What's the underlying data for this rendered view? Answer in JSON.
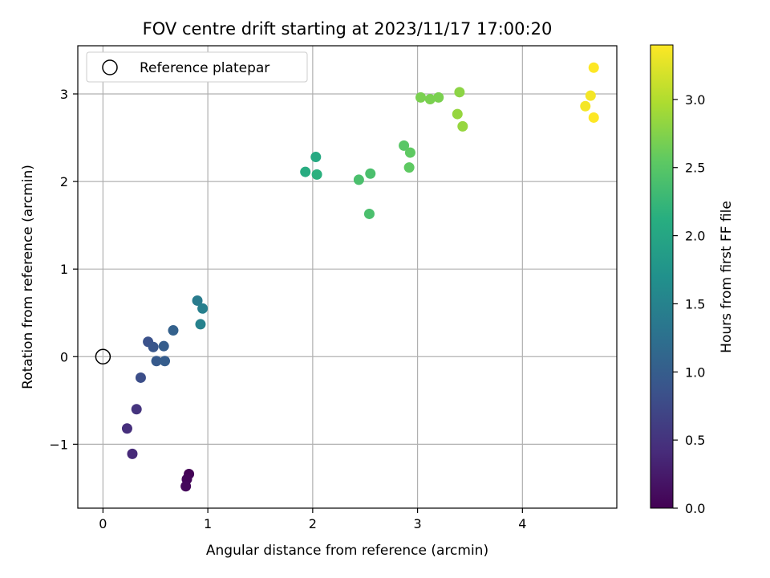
{
  "chart_data": {
    "type": "scatter",
    "title": "FOV centre drift starting at 2023/11/17 17:00:20",
    "xlabel": "Angular distance from reference (arcmin)",
    "ylabel": "Rotation from reference (arcmin)",
    "xlim": [
      -0.24,
      4.9
    ],
    "ylim": [
      -1.73,
      3.55
    ],
    "xticks": [
      0,
      1,
      2,
      3,
      4
    ],
    "xtick_labels": [
      "0",
      "1",
      "2",
      "3",
      "4"
    ],
    "yticks": [
      -1,
      0,
      1,
      2,
      3
    ],
    "ytick_labels": [
      "−1",
      "0",
      "1",
      "2",
      "3"
    ],
    "grid": true,
    "colormap": "viridis",
    "colorbar": {
      "label": "Hours from first FF file",
      "range": [
        0,
        3.4
      ],
      "ticks": [
        0,
        0.5,
        1,
        1.5,
        2,
        2.5,
        3
      ],
      "tick_labels": [
        "0.0",
        "0.5",
        "1.0",
        "1.5",
        "2.0",
        "2.5",
        "3.0"
      ]
    },
    "legend": {
      "placement": "top-left",
      "entries": [
        {
          "label": "Reference platepar",
          "marker": "open-circle"
        }
      ]
    },
    "reference_point": {
      "x": 0,
      "y": 0
    },
    "points": [
      {
        "x": 0.82,
        "y": -1.34,
        "c": 0.02
      },
      {
        "x": 0.8,
        "y": -1.4,
        "c": 0.05
      },
      {
        "x": 0.79,
        "y": -1.48,
        "c": 0.08
      },
      {
        "x": 0.28,
        "y": -1.11,
        "c": 0.4
      },
      {
        "x": 0.23,
        "y": -0.82,
        "c": 0.45
      },
      {
        "x": 0.32,
        "y": -0.6,
        "c": 0.5
      },
      {
        "x": 0.36,
        "y": -0.24,
        "c": 0.8
      },
      {
        "x": 0.43,
        "y": 0.17,
        "c": 0.85
      },
      {
        "x": 0.48,
        "y": 0.11,
        "c": 0.9
      },
      {
        "x": 0.51,
        "y": -0.05,
        "c": 0.95
      },
      {
        "x": 0.59,
        "y": -0.05,
        "c": 1.0
      },
      {
        "x": 0.58,
        "y": 0.12,
        "c": 1.0
      },
      {
        "x": 0.67,
        "y": 0.3,
        "c": 1.05
      },
      {
        "x": 0.9,
        "y": 0.64,
        "c": 1.4
      },
      {
        "x": 0.95,
        "y": 0.55,
        "c": 1.45
      },
      {
        "x": 0.93,
        "y": 0.37,
        "c": 1.5
      },
      {
        "x": 1.93,
        "y": 2.11,
        "c": 2.1
      },
      {
        "x": 2.03,
        "y": 2.28,
        "c": 2.05
      },
      {
        "x": 2.04,
        "y": 2.08,
        "c": 2.15
      },
      {
        "x": 2.44,
        "y": 2.02,
        "c": 2.4
      },
      {
        "x": 2.55,
        "y": 2.09,
        "c": 2.4
      },
      {
        "x": 2.54,
        "y": 1.63,
        "c": 2.4
      },
      {
        "x": 2.87,
        "y": 2.41,
        "c": 2.5
      },
      {
        "x": 2.93,
        "y": 2.33,
        "c": 2.55
      },
      {
        "x": 2.92,
        "y": 2.16,
        "c": 2.55
      },
      {
        "x": 3.03,
        "y": 2.96,
        "c": 2.7
      },
      {
        "x": 3.12,
        "y": 2.94,
        "c": 2.7
      },
      {
        "x": 3.2,
        "y": 2.96,
        "c": 2.7
      },
      {
        "x": 3.4,
        "y": 3.02,
        "c": 2.8
      },
      {
        "x": 3.38,
        "y": 2.77,
        "c": 2.85
      },
      {
        "x": 3.43,
        "y": 2.63,
        "c": 2.85
      },
      {
        "x": 4.6,
        "y": 2.86,
        "c": 3.35
      },
      {
        "x": 4.65,
        "y": 2.98,
        "c": 3.35
      },
      {
        "x": 4.68,
        "y": 3.3,
        "c": 3.4
      },
      {
        "x": 4.68,
        "y": 2.73,
        "c": 3.4
      }
    ]
  }
}
